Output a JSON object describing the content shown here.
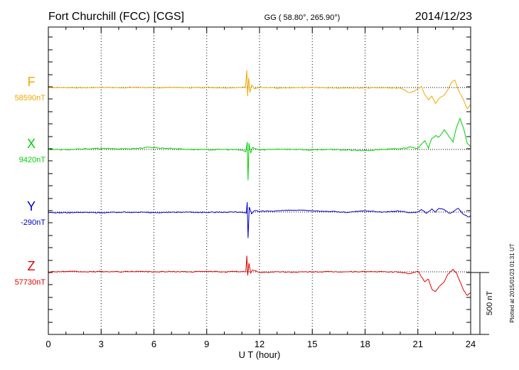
{
  "chart_data": {
    "type": "line",
    "title": "Fort Churchill (FCC)  [CGS]",
    "coords": "GG ( 58.80°, 265.90°)",
    "date": "2014/12/23",
    "xlabel": "U T (hour)",
    "xlim": [
      0,
      24
    ],
    "xticks": [
      "0",
      "3",
      "6",
      "9",
      "12",
      "15",
      "18",
      "21",
      "24"
    ],
    "grid": true,
    "scale_label": "500 nT",
    "scale_nT": 500,
    "footer": "Plotted at 2015/01/23 01:31  UT",
    "series": [
      {
        "name": "F",
        "baseline_label": "58590nT",
        "color": "#f0a800",
        "points": [
          [
            0,
            0
          ],
          [
            1,
            0
          ],
          [
            2,
            -2
          ],
          [
            3,
            2
          ],
          [
            4,
            -2
          ],
          [
            5,
            3
          ],
          [
            6,
            -3
          ],
          [
            7,
            2
          ],
          [
            8,
            -2
          ],
          [
            9,
            1
          ],
          [
            10,
            -2
          ],
          [
            11,
            1
          ],
          [
            11.2,
            3
          ],
          [
            11.28,
            140
          ],
          [
            11.32,
            -70
          ],
          [
            11.38,
            80
          ],
          [
            11.45,
            -40
          ],
          [
            11.55,
            20
          ],
          [
            11.7,
            -10
          ],
          [
            12,
            5
          ],
          [
            13,
            -5
          ],
          [
            14,
            -3
          ],
          [
            15,
            0
          ],
          [
            16,
            -2
          ],
          [
            17,
            -4
          ],
          [
            18,
            -2
          ],
          [
            19,
            0
          ],
          [
            20,
            -5
          ],
          [
            20.5,
            -40
          ],
          [
            20.8,
            -30
          ],
          [
            21,
            -10
          ],
          [
            21.2,
            10
          ],
          [
            21.4,
            -60
          ],
          [
            21.6,
            -100
          ],
          [
            21.8,
            -70
          ],
          [
            22,
            -130
          ],
          [
            22.2,
            -90
          ],
          [
            22.5,
            -60
          ],
          [
            22.7,
            -20
          ],
          [
            22.9,
            40
          ],
          [
            23.1,
            60
          ],
          [
            23.3,
            -20
          ],
          [
            23.6,
            -100
          ],
          [
            23.8,
            -170
          ],
          [
            24,
            -140
          ]
        ]
      },
      {
        "name": "X",
        "baseline_label": "9420nT",
        "color": "#00d000",
        "points": [
          [
            0,
            0
          ],
          [
            1,
            -3
          ],
          [
            2,
            4
          ],
          [
            3,
            8
          ],
          [
            4,
            4
          ],
          [
            5,
            8
          ],
          [
            5.8,
            18
          ],
          [
            6.2,
            12
          ],
          [
            7,
            8
          ],
          [
            8,
            0
          ],
          [
            9,
            -3
          ],
          [
            10,
            0
          ],
          [
            11,
            -5
          ],
          [
            11.22,
            -20
          ],
          [
            11.3,
            60
          ],
          [
            11.35,
            -250
          ],
          [
            11.4,
            50
          ],
          [
            11.5,
            -30
          ],
          [
            11.6,
            15
          ],
          [
            12,
            -5
          ],
          [
            13,
            3
          ],
          [
            14,
            0
          ],
          [
            15,
            -5
          ],
          [
            16,
            0
          ],
          [
            17,
            -5
          ],
          [
            18,
            -10
          ],
          [
            19,
            0
          ],
          [
            20,
            5
          ],
          [
            20.6,
            20
          ],
          [
            21,
            10
          ],
          [
            21.2,
            40
          ],
          [
            21.4,
            70
          ],
          [
            21.6,
            10
          ],
          [
            21.8,
            90
          ],
          [
            22,
            110
          ],
          [
            22.2,
            100
          ],
          [
            22.5,
            160
          ],
          [
            22.7,
            120
          ],
          [
            23,
            60
          ],
          [
            23.2,
            180
          ],
          [
            23.4,
            250
          ],
          [
            23.6,
            170
          ],
          [
            23.8,
            50
          ],
          [
            24,
            20
          ]
        ]
      },
      {
        "name": "Y",
        "baseline_label": "-290nT",
        "color": "#0000c8",
        "points": [
          [
            0,
            -5
          ],
          [
            1,
            -5
          ],
          [
            2,
            -3
          ],
          [
            3,
            -5
          ],
          [
            4,
            -2
          ],
          [
            5,
            0
          ],
          [
            6,
            -5
          ],
          [
            7,
            -2
          ],
          [
            8,
            0
          ],
          [
            9,
            -3
          ],
          [
            10,
            0
          ],
          [
            11,
            0
          ],
          [
            11.25,
            -10
          ],
          [
            11.3,
            80
          ],
          [
            11.35,
            -210
          ],
          [
            11.42,
            40
          ],
          [
            11.55,
            -15
          ],
          [
            11.7,
            10
          ],
          [
            12,
            5
          ],
          [
            13,
            10
          ],
          [
            14,
            15
          ],
          [
            15,
            10
          ],
          [
            16,
            5
          ],
          [
            17,
            -3
          ],
          [
            18,
            10
          ],
          [
            19,
            0
          ],
          [
            20,
            8
          ],
          [
            20.5,
            -5
          ],
          [
            21,
            0
          ],
          [
            21.2,
            20
          ],
          [
            21.5,
            -10
          ],
          [
            21.8,
            25
          ],
          [
            22,
            0
          ],
          [
            22.2,
            30
          ],
          [
            22.5,
            20
          ],
          [
            22.8,
            -10
          ],
          [
            23,
            0
          ],
          [
            23.3,
            30
          ],
          [
            23.6,
            -20
          ],
          [
            23.9,
            -40
          ],
          [
            24,
            -30
          ]
        ]
      },
      {
        "name": "Z",
        "baseline_label": "57730nT",
        "color": "#e00000",
        "points": [
          [
            0,
            0
          ],
          [
            1,
            3
          ],
          [
            2,
            0
          ],
          [
            3,
            2
          ],
          [
            4,
            0
          ],
          [
            5,
            4
          ],
          [
            6,
            0
          ],
          [
            7,
            2
          ],
          [
            8,
            0
          ],
          [
            9,
            3
          ],
          [
            10,
            0
          ],
          [
            11,
            2
          ],
          [
            11.22,
            0
          ],
          [
            11.28,
            130
          ],
          [
            11.33,
            -30
          ],
          [
            11.4,
            70
          ],
          [
            11.5,
            -10
          ],
          [
            11.6,
            15
          ],
          [
            12,
            -5
          ],
          [
            13,
            0
          ],
          [
            14,
            -3
          ],
          [
            15,
            0
          ],
          [
            16,
            0
          ],
          [
            17,
            0
          ],
          [
            18,
            2
          ],
          [
            19,
            0
          ],
          [
            20,
            -3
          ],
          [
            20.5,
            -15
          ],
          [
            20.8,
            -5
          ],
          [
            21,
            5
          ],
          [
            21.2,
            -40
          ],
          [
            21.4,
            -80
          ],
          [
            21.6,
            -60
          ],
          [
            21.8,
            -140
          ],
          [
            22,
            -160
          ],
          [
            22.2,
            -120
          ],
          [
            22.5,
            -80
          ],
          [
            22.7,
            -20
          ],
          [
            23,
            20
          ],
          [
            23.2,
            -10
          ],
          [
            23.4,
            -80
          ],
          [
            23.6,
            -150
          ],
          [
            23.8,
            -190
          ],
          [
            24,
            -170
          ]
        ]
      }
    ]
  }
}
